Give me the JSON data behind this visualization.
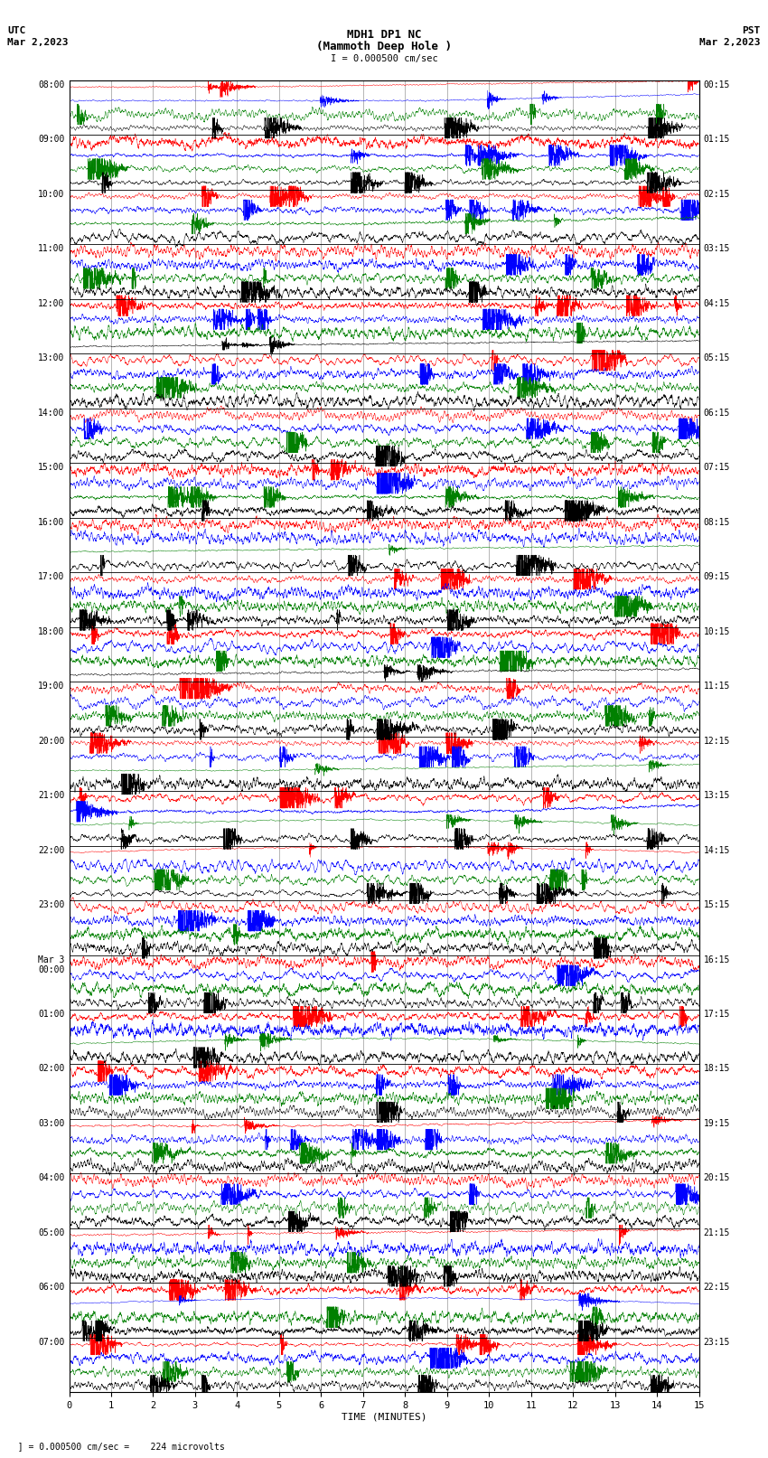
{
  "title_line1": "MDH1 DP1 NC",
  "title_line2": "(Mammoth Deep Hole )",
  "title_line3": "I = 0.000500 cm/sec",
  "left_label_top": "UTC",
  "left_label_date": "Mar 2,2023",
  "right_label_top": "PST",
  "right_label_date": "Mar 2,2023",
  "xlabel": "TIME (MINUTES)",
  "footer": "  ] = 0.000500 cm/sec =    224 microvolts",
  "utc_times": [
    "08:00",
    "09:00",
    "10:00",
    "11:00",
    "12:00",
    "13:00",
    "14:00",
    "15:00",
    "16:00",
    "17:00",
    "18:00",
    "19:00",
    "20:00",
    "21:00",
    "22:00",
    "23:00",
    "Mar 3\n00:00",
    "01:00",
    "02:00",
    "03:00",
    "04:00",
    "05:00",
    "06:00",
    "07:00"
  ],
  "pst_times": [
    "00:15",
    "01:15",
    "02:15",
    "03:15",
    "04:15",
    "05:15",
    "06:15",
    "07:15",
    "08:15",
    "09:15",
    "10:15",
    "11:15",
    "12:15",
    "13:15",
    "14:15",
    "15:15",
    "16:15",
    "17:15",
    "18:15",
    "19:15",
    "20:15",
    "21:15",
    "22:15",
    "23:15"
  ],
  "num_rows": 24,
  "channels_per_row": 4,
  "colors": [
    "red",
    "blue",
    "green",
    "black"
  ],
  "x_min": 0,
  "x_max": 15,
  "x_ticks": [
    0,
    1,
    2,
    3,
    4,
    5,
    6,
    7,
    8,
    9,
    10,
    11,
    12,
    13,
    14,
    15
  ],
  "bg_color": "white",
  "plot_bg_color": "white",
  "grid_color": "#999999",
  "seed": 12345
}
